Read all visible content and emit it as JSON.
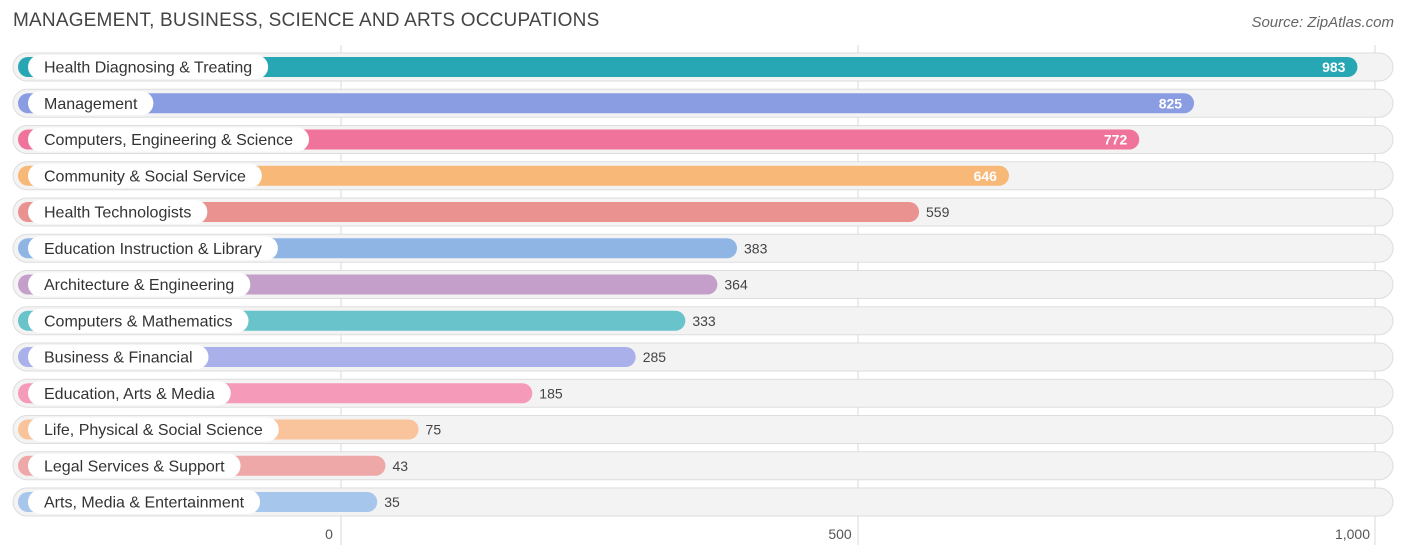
{
  "header": {
    "title": "MANAGEMENT, BUSINESS, SCIENCE AND ARTS OCCUPATIONS",
    "source": "Source: ZipAtlas.com"
  },
  "chart_data": {
    "type": "bar",
    "orientation": "horizontal",
    "title": "MANAGEMENT, BUSINESS, SCIENCE AND ARTS OCCUPATIONS",
    "xlabel": "",
    "ylabel": "",
    "xlim": [
      0,
      1000
    ],
    "x_ticks": [
      0,
      500,
      1000
    ],
    "x_tick_labels": [
      "0",
      "500",
      "1,000"
    ],
    "grid": true,
    "legend": "none",
    "categories": [
      "Health Diagnosing & Treating",
      "Management",
      "Computers, Engineering & Science",
      "Community & Social Service",
      "Health Technologists",
      "Education Instruction & Library",
      "Architecture & Engineering",
      "Computers & Mathematics",
      "Business & Financial",
      "Education, Arts & Media",
      "Life, Physical & Social Science",
      "Legal Services & Support",
      "Arts, Media & Entertainment"
    ],
    "values": [
      983,
      825,
      772,
      646,
      559,
      383,
      364,
      333,
      285,
      185,
      75,
      43,
      35
    ],
    "value_labels": [
      "983",
      "825",
      "772",
      "646",
      "559",
      "383",
      "364",
      "333",
      "285",
      "185",
      "75",
      "43",
      "35"
    ],
    "colors": [
      "#27a7b4",
      "#8b9de2",
      "#f0739b",
      "#f8b877",
      "#e9928f",
      "#8fb5e5",
      "#c49fca",
      "#68c3cb",
      "#a9b0ea",
      "#f59ab9",
      "#f9c49c",
      "#efa8a8",
      "#a7c6ec"
    ]
  }
}
